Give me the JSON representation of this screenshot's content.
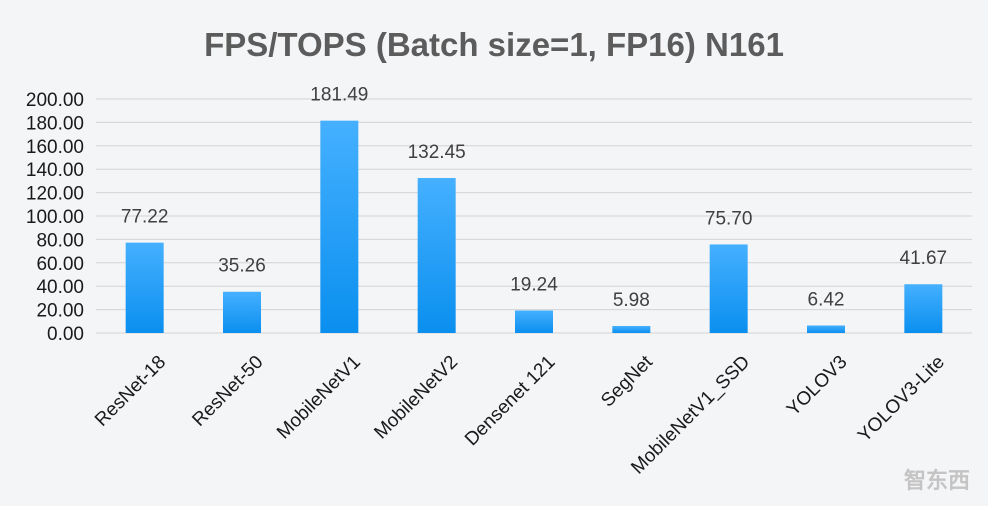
{
  "watermark": "智东西",
  "chart_data": {
    "type": "bar",
    "title": "FPS/TOPS (Batch size=1, FP16)  N161",
    "xlabel": "",
    "ylabel": "",
    "categories": [
      "ResNet-18",
      "ResNet-50",
      "MobileNetV1",
      "MobileNetV2",
      "Densenet 121",
      "SegNet",
      "MobileNetV1_SSD",
      "YOLOV3",
      "YOLOV3-Lite"
    ],
    "values": [
      77.22,
      35.26,
      181.49,
      132.45,
      19.24,
      5.98,
      75.7,
      6.42,
      41.67
    ],
    "value_labels": [
      "77.22",
      "35.26",
      "181.49",
      "132.45",
      "19.24",
      "5.98",
      "75.70",
      "6.42",
      "41.67"
    ],
    "yticks": [
      "0.00",
      "20.00",
      "40.00",
      "60.00",
      "80.00",
      "100.00",
      "120.00",
      "140.00",
      "160.00",
      "180.00",
      "200.00"
    ],
    "ylim": [
      0,
      200
    ],
    "grid": true,
    "legend": "none",
    "colors": {
      "bar_top": "#45b0ff",
      "bar_bottom": "#0a8fef",
      "grid": "#d4d4d4",
      "title": "#5c5c5c"
    }
  }
}
